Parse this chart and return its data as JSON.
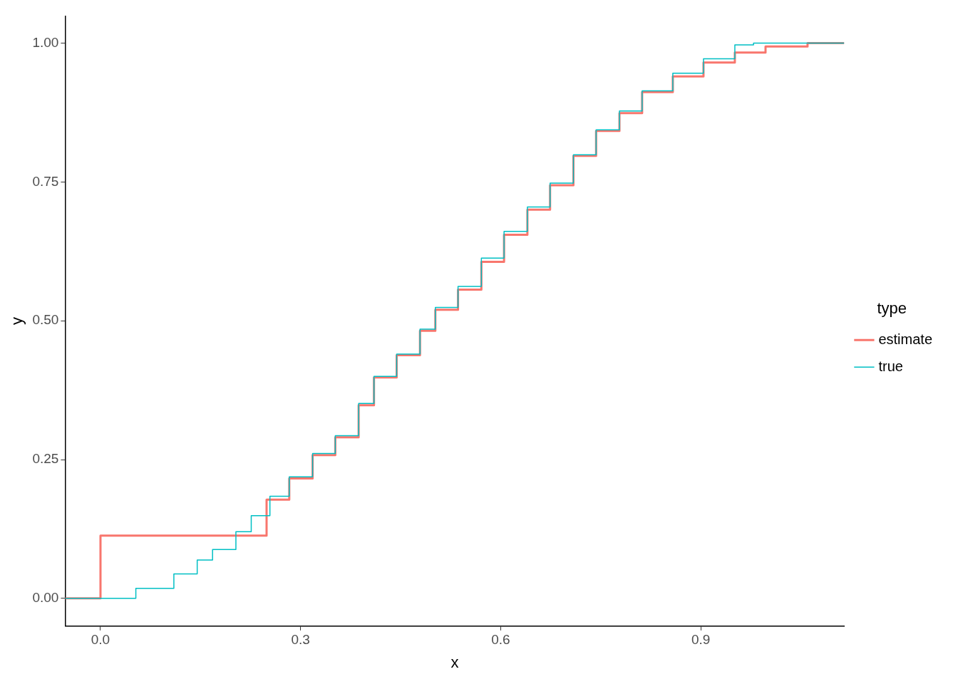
{
  "chart_data": {
    "type": "step",
    "xlabel": "x",
    "ylabel": "y",
    "legend_title": "type",
    "legend": "right",
    "grid": false,
    "xlim": [
      -0.053,
      1.115
    ],
    "ylim": [
      -0.05,
      1.049
    ],
    "xticks": [
      {
        "value": 0,
        "label": "0.0"
      },
      0.3,
      0.6,
      0.9
    ],
    "yticks": [
      {
        "value": 0,
        "label": "0.00"
      },
      0.25,
      {
        "value": 0.5,
        "label": "0.50"
      },
      0.75,
      {
        "value": 1,
        "label": "1.00"
      }
    ],
    "series": [
      {
        "name": "estimate",
        "color": "#f8766d",
        "x": [
          -0.053,
          0,
          0.214,
          0.249,
          0.283,
          0.318,
          0.352,
          0.387,
          0.41,
          0.444,
          0.479,
          0.502,
          0.536,
          0.571,
          0.605,
          0.64,
          0.674,
          0.709,
          0.743,
          0.778,
          0.812,
          0.858,
          0.904,
          0.951,
          0.997,
          1.06,
          1.115
        ],
        "values": [
          0,
          0.113,
          0.113,
          0.178,
          0.216,
          0.258,
          0.29,
          0.348,
          0.398,
          0.438,
          0.482,
          0.52,
          0.556,
          0.606,
          0.655,
          0.7,
          0.744,
          0.797,
          0.842,
          0.874,
          0.912,
          0.94,
          0.965,
          0.983,
          0.994,
          1,
          1
        ]
      },
      {
        "name": "true",
        "color": "#00bfc4",
        "x": [
          -0.053,
          0,
          0.053,
          0.11,
          0.145,
          0.168,
          0.203,
          0.226,
          0.254,
          0.283,
          0.318,
          0.352,
          0.387,
          0.41,
          0.444,
          0.479,
          0.502,
          0.536,
          0.571,
          0.605,
          0.64,
          0.674,
          0.709,
          0.743,
          0.778,
          0.812,
          0.858,
          0.904,
          0.951,
          0.979,
          1.115
        ],
        "values": [
          0,
          0,
          0.018,
          0.044,
          0.069,
          0.088,
          0.12,
          0.149,
          0.184,
          0.219,
          0.261,
          0.293,
          0.351,
          0.4,
          0.44,
          0.485,
          0.524,
          0.562,
          0.613,
          0.661,
          0.705,
          0.748,
          0.799,
          0.844,
          0.878,
          0.914,
          0.946,
          0.972,
          0.997,
          1,
          1
        ]
      }
    ]
  }
}
